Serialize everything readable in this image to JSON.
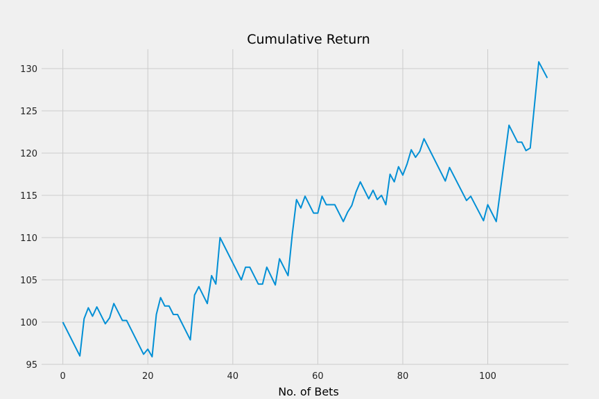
{
  "chart_data": {
    "type": "line",
    "title": "Cumulative Return",
    "xlabel": "No. of Bets",
    "ylabel": "",
    "xlim": [
      -5,
      119
    ],
    "ylim": [
      95,
      132.3
    ],
    "x_ticks": [
      0,
      20,
      40,
      60,
      80,
      100
    ],
    "y_ticks": [
      95,
      100,
      105,
      110,
      115,
      120,
      125,
      130
    ],
    "grid": true,
    "colors": {
      "line": "#008fd5",
      "background": "#f0f0f0",
      "grid": "#cbcbcb"
    },
    "series": [
      {
        "x": [
          0,
          4,
          5,
          6,
          7,
          8,
          10,
          11,
          12,
          14,
          15,
          19,
          20,
          21,
          22,
          23,
          24,
          25,
          26,
          27,
          30,
          31,
          32,
          34,
          35,
          36,
          37,
          42,
          43,
          44,
          46,
          47,
          48,
          50,
          51,
          53,
          54,
          55,
          56,
          57,
          59,
          60,
          61,
          62,
          63,
          64,
          66,
          67,
          68,
          69,
          70,
          72,
          73,
          74,
          75,
          76,
          77,
          78,
          79,
          80,
          81,
          82,
          83,
          84,
          85,
          90,
          91,
          95,
          96,
          99,
          100,
          102,
          105,
          107,
          108,
          109,
          110,
          112,
          114
        ],
        "values": [
          100,
          96,
          100.4,
          101.7,
          100.7,
          101.8,
          99.8,
          100.5,
          102.2,
          100.2,
          100.2,
          96.2,
          96.8,
          95.9,
          100.9,
          102.9,
          101.9,
          101.9,
          100.9,
          100.9,
          97.9,
          103.2,
          104.2,
          102.2,
          105.5,
          104.5,
          110,
          105,
          106.5,
          106.5,
          104.5,
          104.5,
          106.5,
          104.4,
          107.5,
          105.5,
          110.4,
          114.5,
          113.5,
          114.9,
          112.9,
          112.9,
          114.9,
          113.9,
          113.9,
          113.9,
          111.9,
          113,
          113.8,
          115.4,
          116.6,
          114.6,
          115.6,
          114.5,
          115,
          113.9,
          117.5,
          116.6,
          118.4,
          117.4,
          118.7,
          120.4,
          119.5,
          120.2,
          121.7,
          116.7,
          118.3,
          114.4,
          114.9,
          112,
          113.9,
          111.9,
          123.3,
          121.3,
          121.3,
          120.3,
          120.6,
          130.8,
          128.9
        ]
      }
    ]
  }
}
